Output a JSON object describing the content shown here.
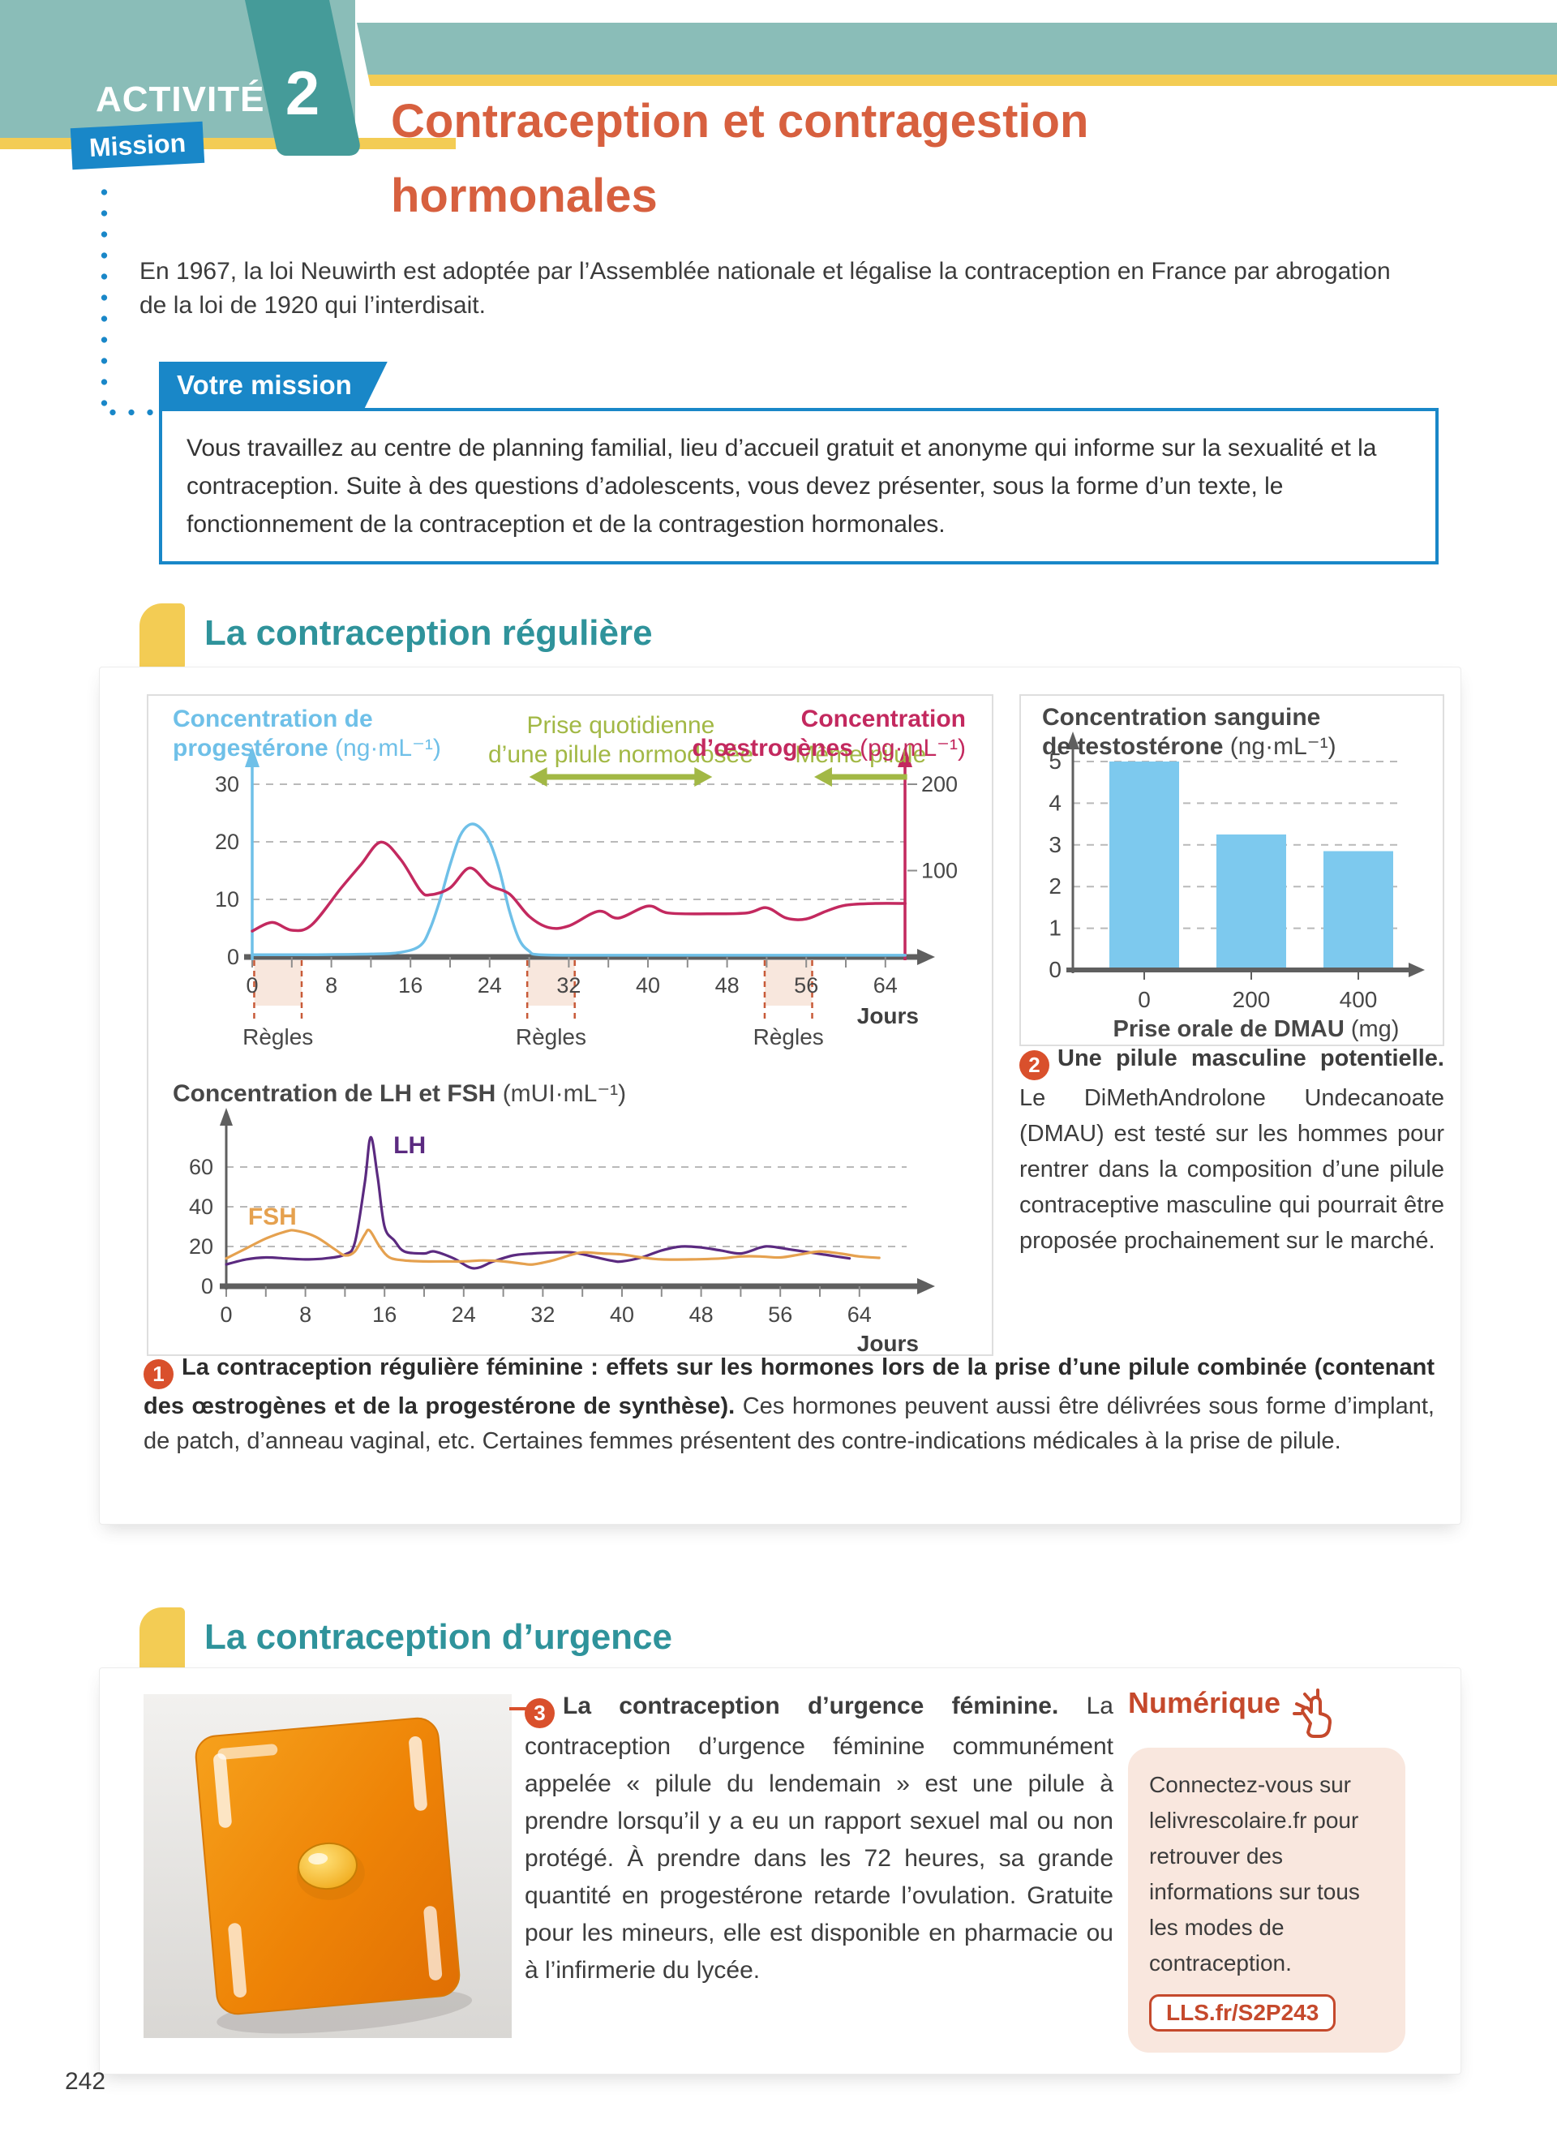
{
  "page": {
    "number": "242"
  },
  "colors": {
    "teal_light": "#8abdb8",
    "teal_dark": "#459b99",
    "yellow": "#f3cc54",
    "mission_blue": "#1987c8",
    "title_orange": "#d7603f",
    "section_teal": "#2f939b",
    "badge_red": "#d9502c",
    "numerique_red": "#c5492c",
    "peach_box": "#f9e7de"
  },
  "header": {
    "kicker": "ACTIVITÉ",
    "activity_number": "2",
    "badge": "Mission",
    "title_line1": "Contraception et contragestion",
    "title_line2": "hormonales",
    "intro_line1": "En 1967, la loi Neuwirth est adoptée par l’Assemblée nationale et légalise la contraception en France par abrogation",
    "intro_line2": "de la loi de 1920 qui l’interdisait."
  },
  "mission": {
    "label": "Votre mission",
    "text": "Vous travaillez au centre de planning familial, lieu d’accueil gratuit et anonyme qui informe sur la sexualité et la contraception. Suite à des questions d’adolescents, vous devez présenter, sous la forme d’un texte, le fonctionnement de la contraception et de la contragestion hormonales."
  },
  "sections": [
    {
      "id": "reguliere",
      "title": "La contraception régulière"
    },
    {
      "id": "urgence",
      "title": "La contraception d’urgence"
    }
  ],
  "caption1": {
    "number": "1",
    "lead": "La contraception régulière féminine : effets sur les hormones lors de la prise d’une pilule combinée (contenant des œstrogènes et de la progestérone de synthèse).",
    "rest": " Ces hormones peuvent aussi être délivrées sous forme d’implant, de patch, d’anneau vaginal, etc. Certaines femmes présentent des contre-indications médicales à la prise de pilule."
  },
  "doc2": {
    "number": "2",
    "lead": "Une pilule masculine potentielle.",
    "rest": " Le DiMethAndrolone Undecanoate (DMAU) est testé sur les hommes pour rentrer dans la composition d’une pilule contraceptive masculine qui pourrait être proposée prochainement sur le marché."
  },
  "doc3": {
    "number": "3",
    "lead": "La contraception d’urgence féminine.",
    "rest": " La contraception d’urgence féminine communément appelée « pilule du lendemain » est une pilule à prendre lorsqu’il y a eu un rapport sexuel mal ou non protégé. À prendre dans les 72 heures, sa grande quantité en progestérone retarde l’ovulation. Gratuite pour les mineurs, elle est disponible en pharmacie ou à l’infirmerie du lycée."
  },
  "numerique": {
    "title": "Numérique",
    "icon": "click-hand-icon",
    "text": "Connectez-vous sur lelivrescolaire.fr pour retrouver des informations sur tous les modes de contraception.",
    "link": "LLS.fr/S2P243"
  },
  "chart_data": [
    {
      "id": "hormones-pilule",
      "type": "line",
      "left_axis": {
        "title_line1": "Concentration de",
        "title_line2_bold": "progestérone",
        "unit": "(ng·mL⁻¹)",
        "ticks": [
          0,
          10,
          20,
          30
        ],
        "color": "#6fc0e8",
        "range": [
          0,
          42
        ]
      },
      "right_axis": {
        "title_line1": "Concentration",
        "title_line2_bold": "d’œstrogènes",
        "unit": "(pg·mL⁻¹)",
        "ticks": [
          100,
          200
        ],
        "color": "#c3295f",
        "range": [
          0,
          290
        ]
      },
      "x_axis": {
        "ticks": [
          0,
          8,
          16,
          24,
          32,
          40,
          48,
          56,
          64
        ],
        "minor_step": 4,
        "label": "Jours",
        "range": [
          0,
          66
        ]
      },
      "bands": [
        {
          "x0": 0.2,
          "x1": 5,
          "label": "Règles"
        },
        {
          "x0": 27.8,
          "x1": 32.6,
          "label": "Règles"
        },
        {
          "x0": 51.8,
          "x1": 56.6,
          "label": "Règles"
        }
      ],
      "annotations": [
        {
          "style": "double-arrow",
          "x0": 28,
          "x1": 46.5,
          "text_lines": [
            "Prise quotidienne",
            "d’une pilule normodosée"
          ]
        },
        {
          "style": "arrow-left",
          "x0": 56.8,
          "x1": 66.2,
          "text_lines": [
            "Même pilule"
          ]
        }
      ],
      "series": [
        {
          "name": "progestérone",
          "axis": "left",
          "color": "#6fc0e8",
          "points": [
            [
              0,
              0.4
            ],
            [
              6,
              0.4
            ],
            [
              12,
              0.5
            ],
            [
              15,
              0.8
            ],
            [
              17,
              2
            ],
            [
              18,
              5
            ],
            [
              19,
              10
            ],
            [
              20,
              16
            ],
            [
              21,
              21
            ],
            [
              22,
              23
            ],
            [
              23,
              22.5
            ],
            [
              24,
              20
            ],
            [
              25,
              15
            ],
            [
              26,
              8
            ],
            [
              27,
              3
            ],
            [
              28,
              1
            ],
            [
              29,
              0.4
            ],
            [
              34,
              0.3
            ],
            [
              40,
              0.3
            ],
            [
              46,
              0.3
            ],
            [
              52,
              0.3
            ],
            [
              58,
              0.3
            ],
            [
              66,
              0.3
            ]
          ]
        },
        {
          "name": "œstrogènes",
          "axis": "right",
          "color": "#c3295f",
          "points": [
            [
              0,
              30
            ],
            [
              2,
              40
            ],
            [
              4,
              31
            ],
            [
              6,
              37
            ],
            [
              9,
              80
            ],
            [
              11,
              107
            ],
            [
              13,
              133
            ],
            [
              15,
              113
            ],
            [
              17,
              77
            ],
            [
              18,
              72
            ],
            [
              20,
              80
            ],
            [
              22,
              103
            ],
            [
              24,
              83
            ],
            [
              26,
              73
            ],
            [
              28,
              47
            ],
            [
              30,
              34
            ],
            [
              32,
              36
            ],
            [
              35,
              53
            ],
            [
              37,
              45
            ],
            [
              40,
              59
            ],
            [
              42,
              51
            ],
            [
              46,
              50
            ],
            [
              50,
              51
            ],
            [
              52,
              57
            ],
            [
              54,
              45
            ],
            [
              56,
              44
            ],
            [
              58,
              53
            ],
            [
              60,
              60
            ],
            [
              63,
              62
            ],
            [
              66,
              62
            ]
          ]
        }
      ],
      "style": {
        "band_fill": "#f8e7dd",
        "band_line": "#c85a38",
        "green": "#a2b845",
        "grid": "#b9b9b9"
      }
    },
    {
      "id": "lh-fsh",
      "type": "line",
      "title_bold": "Concentration de LH et FSH",
      "title_unit": "(mUI·mL⁻¹)",
      "y_axis": {
        "ticks": [
          0,
          20,
          40,
          60
        ],
        "range": [
          0,
          85
        ]
      },
      "x_axis": {
        "ticks": [
          0,
          8,
          16,
          24,
          32,
          40,
          48,
          56,
          64
        ],
        "minor_step": 4,
        "label": "Jours",
        "range": [
          0,
          66
        ]
      },
      "series": [
        {
          "name": "LH",
          "color": "#5b2a80",
          "label_xy": [
            16.9,
            67
          ],
          "points": [
            [
              0,
              11
            ],
            [
              2,
              13.5
            ],
            [
              4,
              14.5
            ],
            [
              6,
              14
            ],
            [
              8,
              13.5
            ],
            [
              10,
              14
            ],
            [
              12,
              16
            ],
            [
              13,
              22
            ],
            [
              14,
              52
            ],
            [
              14.6,
              75
            ],
            [
              15.3,
              55
            ],
            [
              16,
              30
            ],
            [
              17,
              23
            ],
            [
              18,
              17.5
            ],
            [
              20,
              16.5
            ],
            [
              21,
              17.5
            ],
            [
              23,
              14
            ],
            [
              25,
              9
            ],
            [
              27,
              12.5
            ],
            [
              29,
              15.5
            ],
            [
              31,
              16.5
            ],
            [
              33,
              17
            ],
            [
              35,
              17
            ],
            [
              37,
              15
            ],
            [
              39,
              12.8
            ],
            [
              40,
              12.5
            ],
            [
              42,
              14.5
            ],
            [
              44,
              18
            ],
            [
              46,
              20
            ],
            [
              48,
              19.5
            ],
            [
              50,
              18
            ],
            [
              52,
              16.5
            ],
            [
              54,
              19.5
            ],
            [
              55,
              20
            ],
            [
              57,
              18.5
            ],
            [
              59,
              17
            ],
            [
              61,
              15.5
            ],
            [
              63,
              14
            ]
          ]
        },
        {
          "name": "FSH",
          "color": "#e5a14f",
          "label_xy": [
            2.2,
            31
          ],
          "points": [
            [
              0,
              14
            ],
            [
              2,
              19
            ],
            [
              4,
              24
            ],
            [
              6,
              27.5
            ],
            [
              7,
              28
            ],
            [
              9,
              25
            ],
            [
              11,
              18.5
            ],
            [
              12,
              15.5
            ],
            [
              13,
              17.5
            ],
            [
              14,
              26
            ],
            [
              14.5,
              28
            ],
            [
              15.5,
              20
            ],
            [
              16.5,
              14.5
            ],
            [
              18,
              13
            ],
            [
              20,
              12.5
            ],
            [
              22,
              12.5
            ],
            [
              24,
              12.5
            ],
            [
              26,
              13
            ],
            [
              28,
              12.5
            ],
            [
              30,
              11.3
            ],
            [
              31,
              11
            ],
            [
              33,
              13
            ],
            [
              35,
              16
            ],
            [
              36,
              17
            ],
            [
              38,
              16.5
            ],
            [
              40,
              16
            ],
            [
              42,
              14.5
            ],
            [
              44,
              13.5
            ],
            [
              47,
              13.5
            ],
            [
              50,
              14
            ],
            [
              52,
              15
            ],
            [
              54,
              15
            ],
            [
              56,
              14.5
            ],
            [
              58,
              16
            ],
            [
              60,
              17.5
            ],
            [
              62,
              16.5
            ],
            [
              64,
              15
            ],
            [
              66,
              14.3
            ]
          ]
        }
      ],
      "style": {
        "grid": "#b9b9b9"
      }
    },
    {
      "id": "testosterone-dmau",
      "type": "bar",
      "title_line1": "Concentration sanguine",
      "title_line2_bold": "de testostérone",
      "unit": "(ng·mL⁻¹)",
      "categories": [
        "0",
        "200",
        "400"
      ],
      "values": [
        5,
        3.25,
        2.85
      ],
      "xlabel_bold": "Prise orale de DMAU",
      "xlabel_unit": "(mg)",
      "y_axis": {
        "ticks": [
          0,
          1,
          2,
          3,
          4,
          5
        ],
        "range": [
          0,
          5.6
        ]
      },
      "bar_color": "#7dc9ee"
    }
  ]
}
